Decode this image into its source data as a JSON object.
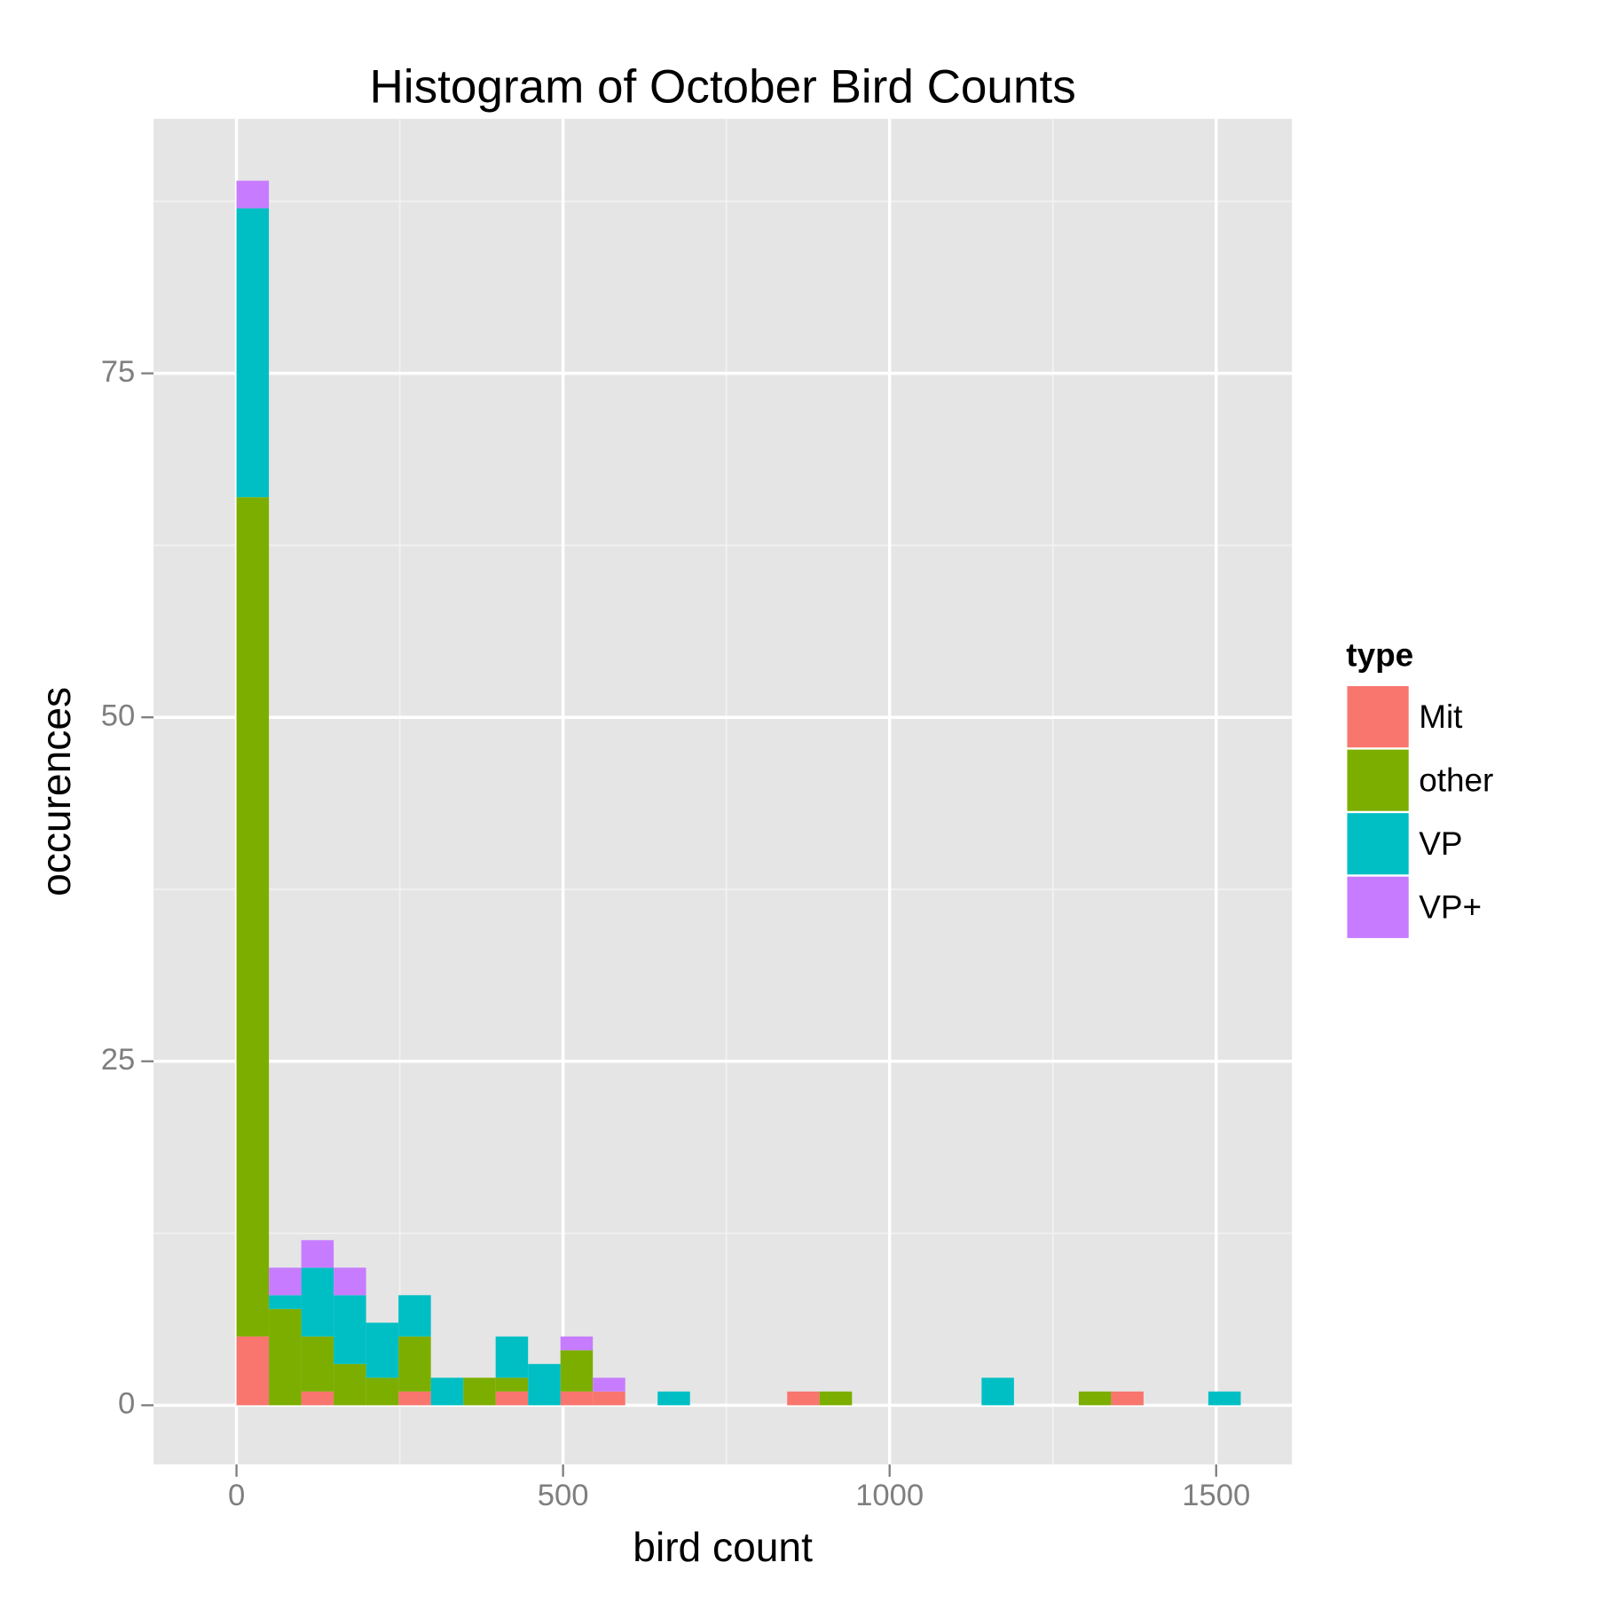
{
  "chart_data": {
    "type": "histogram",
    "title": "Histogram of October Bird Counts",
    "x_label": "bird count",
    "y_label": "occurences",
    "bins": [
      0,
      49.6,
      99.2,
      148.8,
      198.4,
      248,
      297.6,
      347.2,
      396.8,
      446.4,
      496,
      545.6,
      595.2,
      644.8,
      694.4,
      744,
      793.6,
      843.2,
      892.8,
      942.4,
      992,
      1041.6,
      1091.2,
      1140.8,
      1190.4,
      1240,
      1289.6,
      1339.2,
      1388.8,
      1438.4,
      1488,
      1537.6
    ],
    "series": [
      {
        "name": "Mit",
        "color": "#f8766d",
        "values": [
          5,
          0,
          1,
          0,
          0,
          1,
          0,
          0,
          1,
          0,
          1,
          1,
          0,
          0,
          0,
          0,
          0,
          1,
          0,
          0,
          0,
          0,
          0,
          0,
          0,
          0,
          0,
          1,
          0,
          0,
          0
        ]
      },
      {
        "name": "other",
        "color": "#7cae00",
        "values": [
          61,
          7,
          4,
          3,
          2,
          4,
          0,
          2,
          1,
          0,
          3,
          0,
          0,
          0,
          0,
          0,
          0,
          0,
          1,
          0,
          0,
          0,
          0,
          0,
          0,
          0,
          1,
          0,
          0,
          0,
          0
        ]
      },
      {
        "name": "VP",
        "color": "#00bfc4",
        "values": [
          21,
          1,
          5,
          5,
          4,
          3,
          2,
          0,
          3,
          3,
          0,
          0,
          0,
          1,
          0,
          0,
          0,
          0,
          0,
          0,
          0,
          0,
          0,
          2,
          0,
          0,
          0,
          0,
          0,
          0,
          1
        ]
      },
      {
        "name": "VP+",
        "color": "#c77cff",
        "values": [
          2,
          2,
          2,
          2,
          0,
          0,
          0,
          0,
          0,
          0,
          1,
          1,
          0,
          0,
          0,
          0,
          0,
          0,
          0,
          0,
          0,
          0,
          0,
          0,
          0,
          0,
          0,
          0,
          0,
          0,
          0
        ]
      }
    ],
    "legend_title": "type",
    "xlim": [
      -127,
      1616
    ],
    "ylim": [
      -4.3,
      93.5
    ],
    "xticks": [
      0,
      500,
      1000,
      1500
    ],
    "yticks": [
      0,
      25,
      50,
      75
    ],
    "grid": true
  }
}
